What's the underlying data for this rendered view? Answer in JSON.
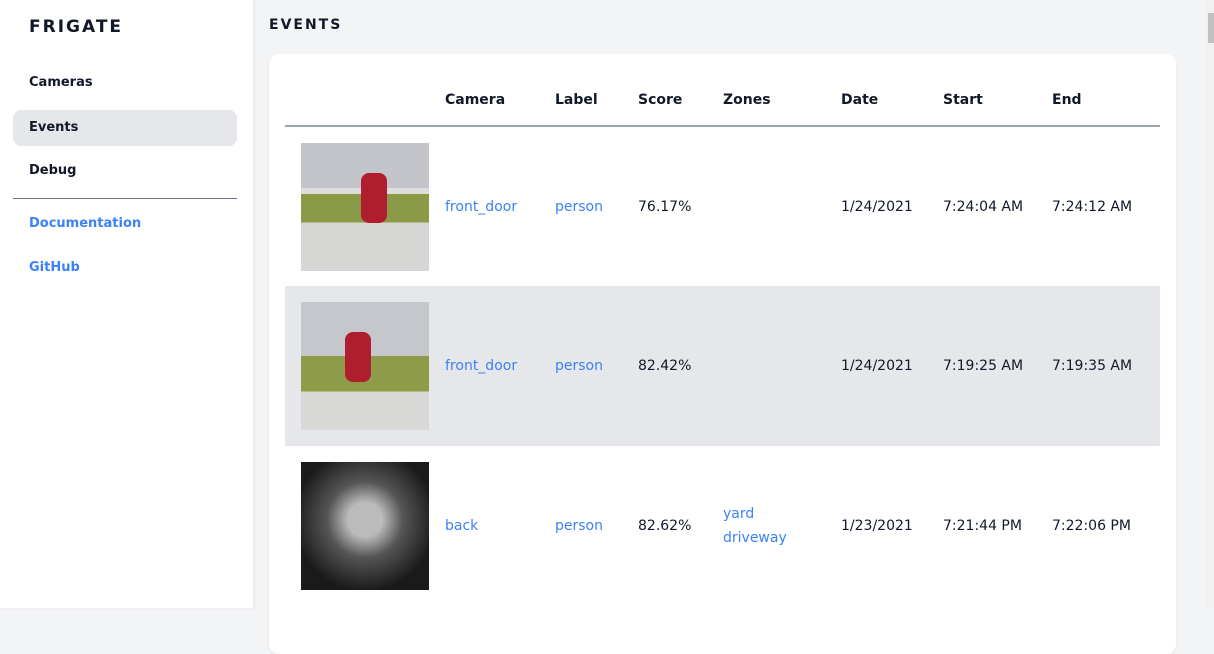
{
  "sidebar": {
    "brand": "FRIGATE",
    "items": [
      {
        "label": "Cameras"
      },
      {
        "label": "Events",
        "active": true
      },
      {
        "label": "Debug"
      }
    ],
    "links": [
      {
        "label": "Documentation"
      },
      {
        "label": "GitHub"
      }
    ]
  },
  "page": {
    "title": "EVENTS"
  },
  "table": {
    "headers": [
      "",
      "Camera",
      "Label",
      "Score",
      "Zones",
      "Date",
      "Start",
      "End"
    ],
    "rows": [
      {
        "camera": "front_door",
        "label": "person",
        "score": "76.17%",
        "zones": [
          "",
          ""
        ],
        "date": "1/24/2021",
        "start": "7:24:04 AM",
        "end": "7:24:12 AM"
      },
      {
        "camera": "front_door",
        "label": "person",
        "score": "82.42%",
        "zones": [
          "",
          ""
        ],
        "date": "1/24/2021",
        "start": "7:19:25 AM",
        "end": "7:19:35 AM"
      },
      {
        "camera": "back",
        "label": "person",
        "score": "82.62%",
        "zones": [
          "yard",
          "driveway"
        ],
        "date": "1/23/2021",
        "start": "7:21:44 PM",
        "end": "7:22:06 PM"
      }
    ]
  },
  "colors": {
    "link": "#3b82f6",
    "active_bg": "#e5e7eb"
  }
}
